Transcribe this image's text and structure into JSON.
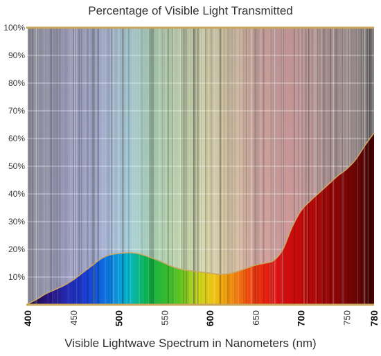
{
  "chart_data": {
    "type": "area",
    "title": "Percentage of Visible Light Transmitted",
    "xlabel": "Visible Lightwave Spectrum in Nanometers (nm)",
    "ylabel": "",
    "xlim": [
      400,
      780
    ],
    "ylim": [
      0,
      100
    ],
    "x_ticks": [
      400,
      450,
      500,
      550,
      600,
      650,
      700,
      750,
      780
    ],
    "x_tick_labels": [
      "400",
      "450",
      "500",
      "550",
      "600",
      "650",
      "700",
      "750",
      "780"
    ],
    "x_major_ticks": [
      400,
      500,
      600,
      700,
      780
    ],
    "y_ticks": [
      10,
      20,
      30,
      40,
      50,
      60,
      70,
      80,
      90,
      100
    ],
    "y_tick_labels": [
      "10%",
      "20%",
      "30%",
      "40%",
      "50%",
      "60%",
      "70%",
      "80%",
      "90%",
      "100%"
    ],
    "grid": true,
    "background": "visible spectrum gradient",
    "colors": {
      "axis_line": "#c9a45c",
      "curve_line": "#c8a868",
      "grid": "#ffffff"
    },
    "series": [
      {
        "x": [
          400,
          410,
          420,
          430,
          440,
          450,
          460,
          470,
          480,
          490,
          500,
          510,
          520,
          530,
          540,
          550,
          560,
          570,
          580,
          590,
          600,
          610,
          620,
          630,
          640,
          650,
          660,
          670,
          680,
          690,
          700,
          710,
          720,
          730,
          740,
          750,
          760,
          770,
          780
        ],
        "values": [
          0.3,
          2.0,
          4.0,
          5.5,
          7.0,
          9.0,
          11.5,
          14.0,
          16.5,
          18.0,
          18.5,
          18.8,
          18.5,
          17.6,
          16.4,
          15.0,
          13.6,
          12.7,
          12.2,
          11.8,
          11.4,
          11.0,
          11.2,
          12.0,
          13.2,
          14.3,
          15.0,
          16.0,
          20.0,
          28.0,
          34.0,
          37.5,
          40.5,
          43.5,
          46.5,
          49.0,
          52.5,
          57.5,
          62.0
        ]
      }
    ]
  }
}
